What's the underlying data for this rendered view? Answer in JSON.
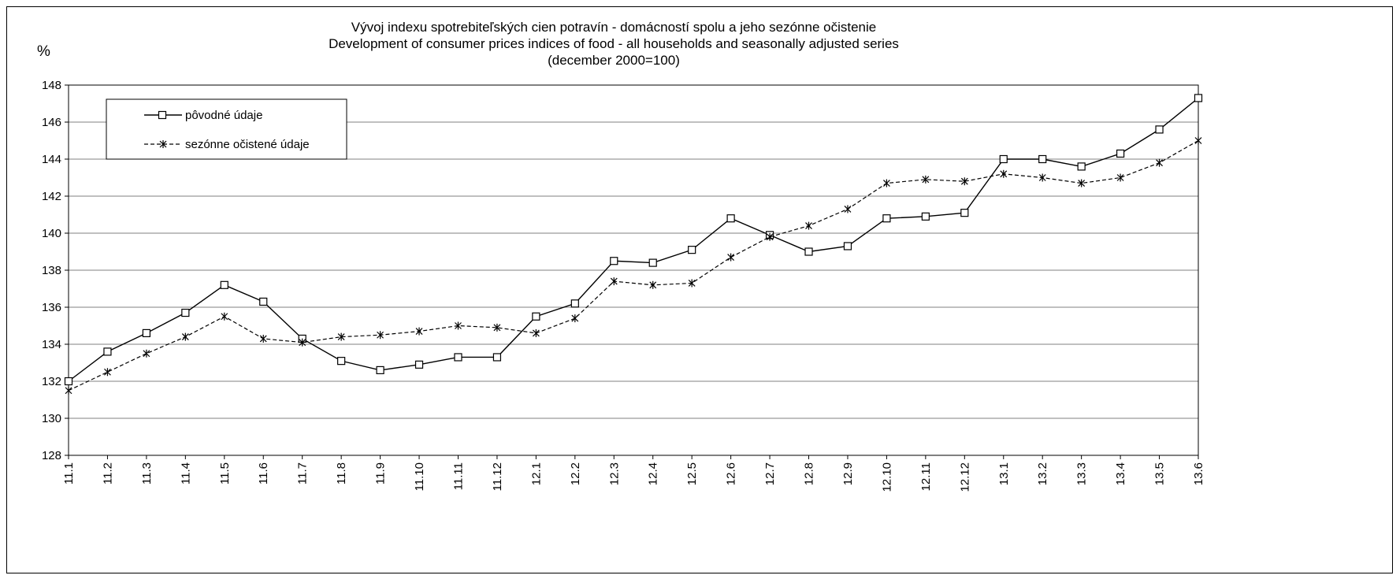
{
  "chart_data": {
    "type": "line",
    "title": [
      "Vývoj indexu spotrebiteľských cien potravín - domácností spolu a jeho sezónne očistenie",
      "Development of consumer prices indices of food - all households and seasonally adjusted series",
      "(december 2000=100)"
    ],
    "ylabel": "%",
    "ylim": [
      128,
      148
    ],
    "yticks": [
      128,
      130,
      132,
      134,
      136,
      138,
      140,
      142,
      144,
      146,
      148
    ],
    "grid": true,
    "legend_position": "top-left",
    "x": [
      "11.1",
      "11.2",
      "11.3",
      "11.4",
      "11.5",
      "11.6",
      "11.7",
      "11.8",
      "11.9",
      "11.10",
      "11.11",
      "11.12",
      "12.1",
      "12.2",
      "12.3",
      "12.4",
      "12.5",
      "12.6",
      "12.7",
      "12.8",
      "12.9",
      "12.10",
      "12.11",
      "12.12",
      "13.1",
      "13.2",
      "13.3",
      "13.4",
      "13.5",
      "13.6"
    ],
    "series": [
      {
        "name": "pôvodné údaje",
        "style": "solid",
        "marker": "square",
        "color": "#000000",
        "values": [
          132.0,
          133.6,
          134.6,
          135.7,
          137.2,
          136.3,
          134.3,
          133.1,
          132.6,
          132.9,
          133.3,
          133.3,
          135.5,
          136.2,
          138.5,
          138.4,
          139.1,
          140.8,
          139.9,
          139.0,
          139.3,
          140.8,
          140.9,
          141.1,
          144.0,
          144.0,
          143.6,
          144.3,
          145.6,
          147.3
        ]
      },
      {
        "name": "sezónne očistené údaje",
        "style": "dashed",
        "marker": "star",
        "color": "#000000",
        "values": [
          131.5,
          132.5,
          133.5,
          134.4,
          135.5,
          134.3,
          134.1,
          134.4,
          134.5,
          134.7,
          135.0,
          134.9,
          134.6,
          135.4,
          137.4,
          137.2,
          137.3,
          138.7,
          139.8,
          140.4,
          141.3,
          142.7,
          142.9,
          142.8,
          143.2,
          143.0,
          142.7,
          143.0,
          143.8,
          145.0
        ]
      }
    ]
  }
}
